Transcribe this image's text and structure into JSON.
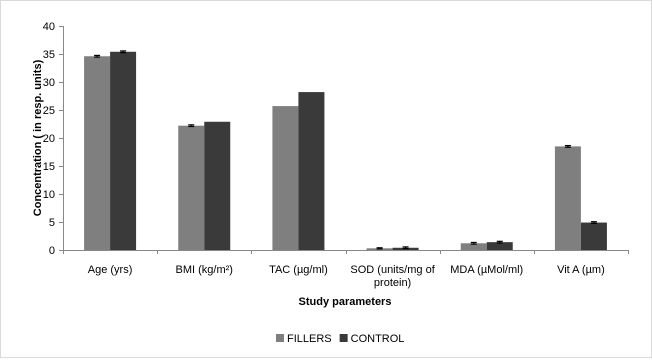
{
  "chart_data": {
    "type": "bar",
    "title": "",
    "xlabel": "Study parameters",
    "ylabel": "Concentration ( in resp. units)",
    "ylim": [
      0,
      40
    ],
    "yticks": [
      0,
      5,
      10,
      15,
      20,
      25,
      30,
      35,
      40
    ],
    "grid": false,
    "legend_position": "bottom",
    "categories": [
      [
        "Age (yrs)"
      ],
      [
        "BMI (kg/m²)"
      ],
      [
        "TAC (µg/ml)"
      ],
      [
        "SOD (units/mg of",
        "protein)"
      ],
      [
        "MDA (µMol/ml)"
      ],
      [
        "Vit A (µm)"
      ]
    ],
    "series": [
      {
        "name": "FILLERS",
        "color": "#7f7f7f",
        "values": [
          34.6,
          22.2,
          25.7,
          0.3,
          1.2,
          18.5
        ],
        "errors": [
          0.15,
          0.15,
          0.0,
          0.1,
          0.15,
          0.15
        ]
      },
      {
        "name": "CONTROL",
        "color": "#3a3a3a",
        "values": [
          35.4,
          22.9,
          28.2,
          0.4,
          1.4,
          4.9
        ],
        "errors": [
          0.15,
          0.0,
          0.0,
          0.15,
          0.15,
          0.15
        ]
      }
    ]
  }
}
